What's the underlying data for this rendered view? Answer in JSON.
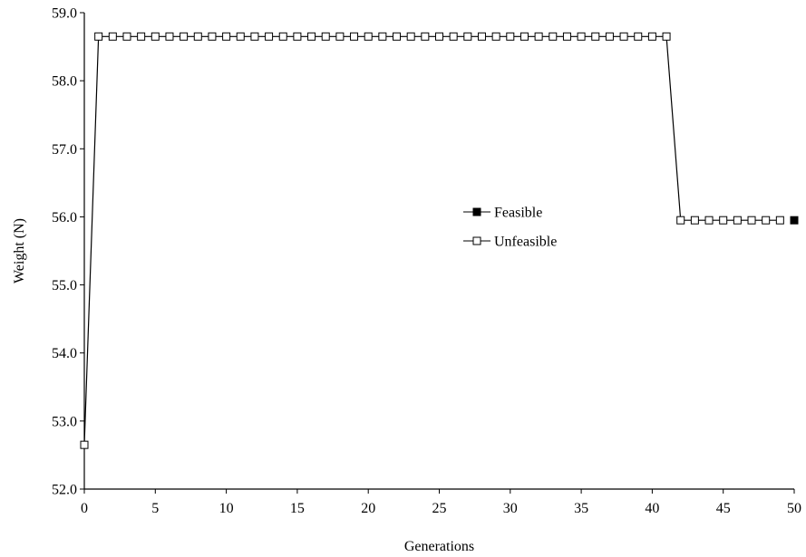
{
  "chart_data": {
    "type": "line",
    "title": "",
    "xlabel": "Generations",
    "ylabel": "Weight (N)",
    "xlim": [
      0,
      50
    ],
    "ylim": [
      52.0,
      59.0
    ],
    "x_ticks": [
      "0",
      "5",
      "10",
      "15",
      "20",
      "25",
      "30",
      "35",
      "40",
      "45",
      "50"
    ],
    "y_ticks": [
      "52.0",
      "53.0",
      "54.0",
      "55.0",
      "56.0",
      "57.0",
      "58.0",
      "59.0"
    ],
    "grid": false,
    "legend_position": "center-right",
    "colors": {
      "line": "#000000",
      "feasible_marker": "#000000",
      "unfeasible_marker": "#ffffff"
    },
    "series": [
      {
        "name": "Feasible",
        "marker": "filled-square",
        "points": [
          [
            50,
            55.95
          ]
        ]
      },
      {
        "name": "Unfeasible",
        "marker": "hollow-square",
        "points": [
          [
            0,
            52.65
          ],
          [
            1,
            58.65
          ],
          [
            2,
            58.65
          ],
          [
            3,
            58.65
          ],
          [
            4,
            58.65
          ],
          [
            5,
            58.65
          ],
          [
            6,
            58.65
          ],
          [
            7,
            58.65
          ],
          [
            8,
            58.65
          ],
          [
            9,
            58.65
          ],
          [
            10,
            58.65
          ],
          [
            11,
            58.65
          ],
          [
            12,
            58.65
          ],
          [
            13,
            58.65
          ],
          [
            14,
            58.65
          ],
          [
            15,
            58.65
          ],
          [
            16,
            58.65
          ],
          [
            17,
            58.65
          ],
          [
            18,
            58.65
          ],
          [
            19,
            58.65
          ],
          [
            20,
            58.65
          ],
          [
            21,
            58.65
          ],
          [
            22,
            58.65
          ],
          [
            23,
            58.65
          ],
          [
            24,
            58.65
          ],
          [
            25,
            58.65
          ],
          [
            26,
            58.65
          ],
          [
            27,
            58.65
          ],
          [
            28,
            58.65
          ],
          [
            29,
            58.65
          ],
          [
            30,
            58.65
          ],
          [
            31,
            58.65
          ],
          [
            32,
            58.65
          ],
          [
            33,
            58.65
          ],
          [
            34,
            58.65
          ],
          [
            35,
            58.65
          ],
          [
            36,
            58.65
          ],
          [
            37,
            58.65
          ],
          [
            38,
            58.65
          ],
          [
            39,
            58.65
          ],
          [
            40,
            58.65
          ],
          [
            41,
            58.65
          ],
          [
            42,
            55.95
          ],
          [
            43,
            55.95
          ],
          [
            44,
            55.95
          ],
          [
            45,
            55.95
          ],
          [
            46,
            55.95
          ],
          [
            47,
            55.95
          ],
          [
            48,
            55.95
          ],
          [
            49,
            55.95
          ]
        ]
      }
    ]
  }
}
